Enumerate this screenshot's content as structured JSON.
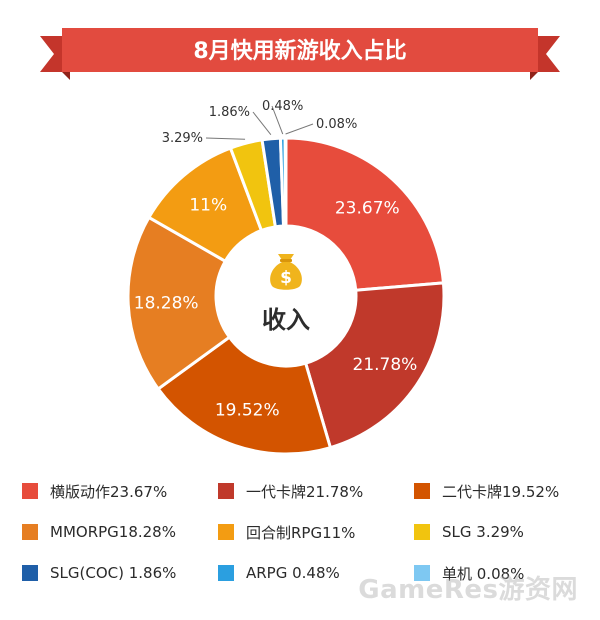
{
  "title": "8月快用新游收入占比",
  "center_label": "收入",
  "watermark": "GameRes游资网",
  "colors": {
    "banner": "#e24b3f",
    "banner_dark": "#a8281f",
    "banner_ribbon": "#d93d31",
    "coin": "#f0b41c"
  },
  "icons": {
    "center": "money-bag-icon"
  },
  "chart_data": {
    "type": "pie",
    "donut": true,
    "title": "8月快用新游收入占比",
    "center_label": "收入",
    "legend_position": "bottom",
    "slices": [
      {
        "name": "横版动作",
        "value": 23.67,
        "label": "23.67%",
        "legend": "横版动作23.67%",
        "color": "#e74c3c"
      },
      {
        "name": "一代卡牌",
        "value": 21.78,
        "label": "21.78%",
        "legend": "一代卡牌21.78%",
        "color": "#c0392b"
      },
      {
        "name": "二代卡牌",
        "value": 19.52,
        "label": "19.52%",
        "legend": "二代卡牌19.52%",
        "color": "#d35400"
      },
      {
        "name": "MMORPG",
        "value": 18.28,
        "label": "18.28%",
        "legend": "MMORPG18.28%",
        "color": "#e67e22"
      },
      {
        "name": "回合制RPG",
        "value": 11,
        "label": "11%",
        "legend": "回合制RPG11%",
        "color": "#f39c12"
      },
      {
        "name": "SLG",
        "value": 3.29,
        "label": "3.29%",
        "legend": "SLG 3.29%",
        "color": "#f1c40f"
      },
      {
        "name": "SLG(COC)",
        "value": 1.86,
        "label": "1.86%",
        "legend": "SLG(COC) 1.86%",
        "color": "#1f5fa8"
      },
      {
        "name": "ARPG",
        "value": 0.48,
        "label": "0.48%",
        "legend": "ARPG 0.48%",
        "color": "#2b9fe0"
      },
      {
        "name": "单机",
        "value": 0.08,
        "label": "0.08%",
        "legend": "单机 0.08%",
        "color": "#7ec8f2"
      }
    ]
  }
}
